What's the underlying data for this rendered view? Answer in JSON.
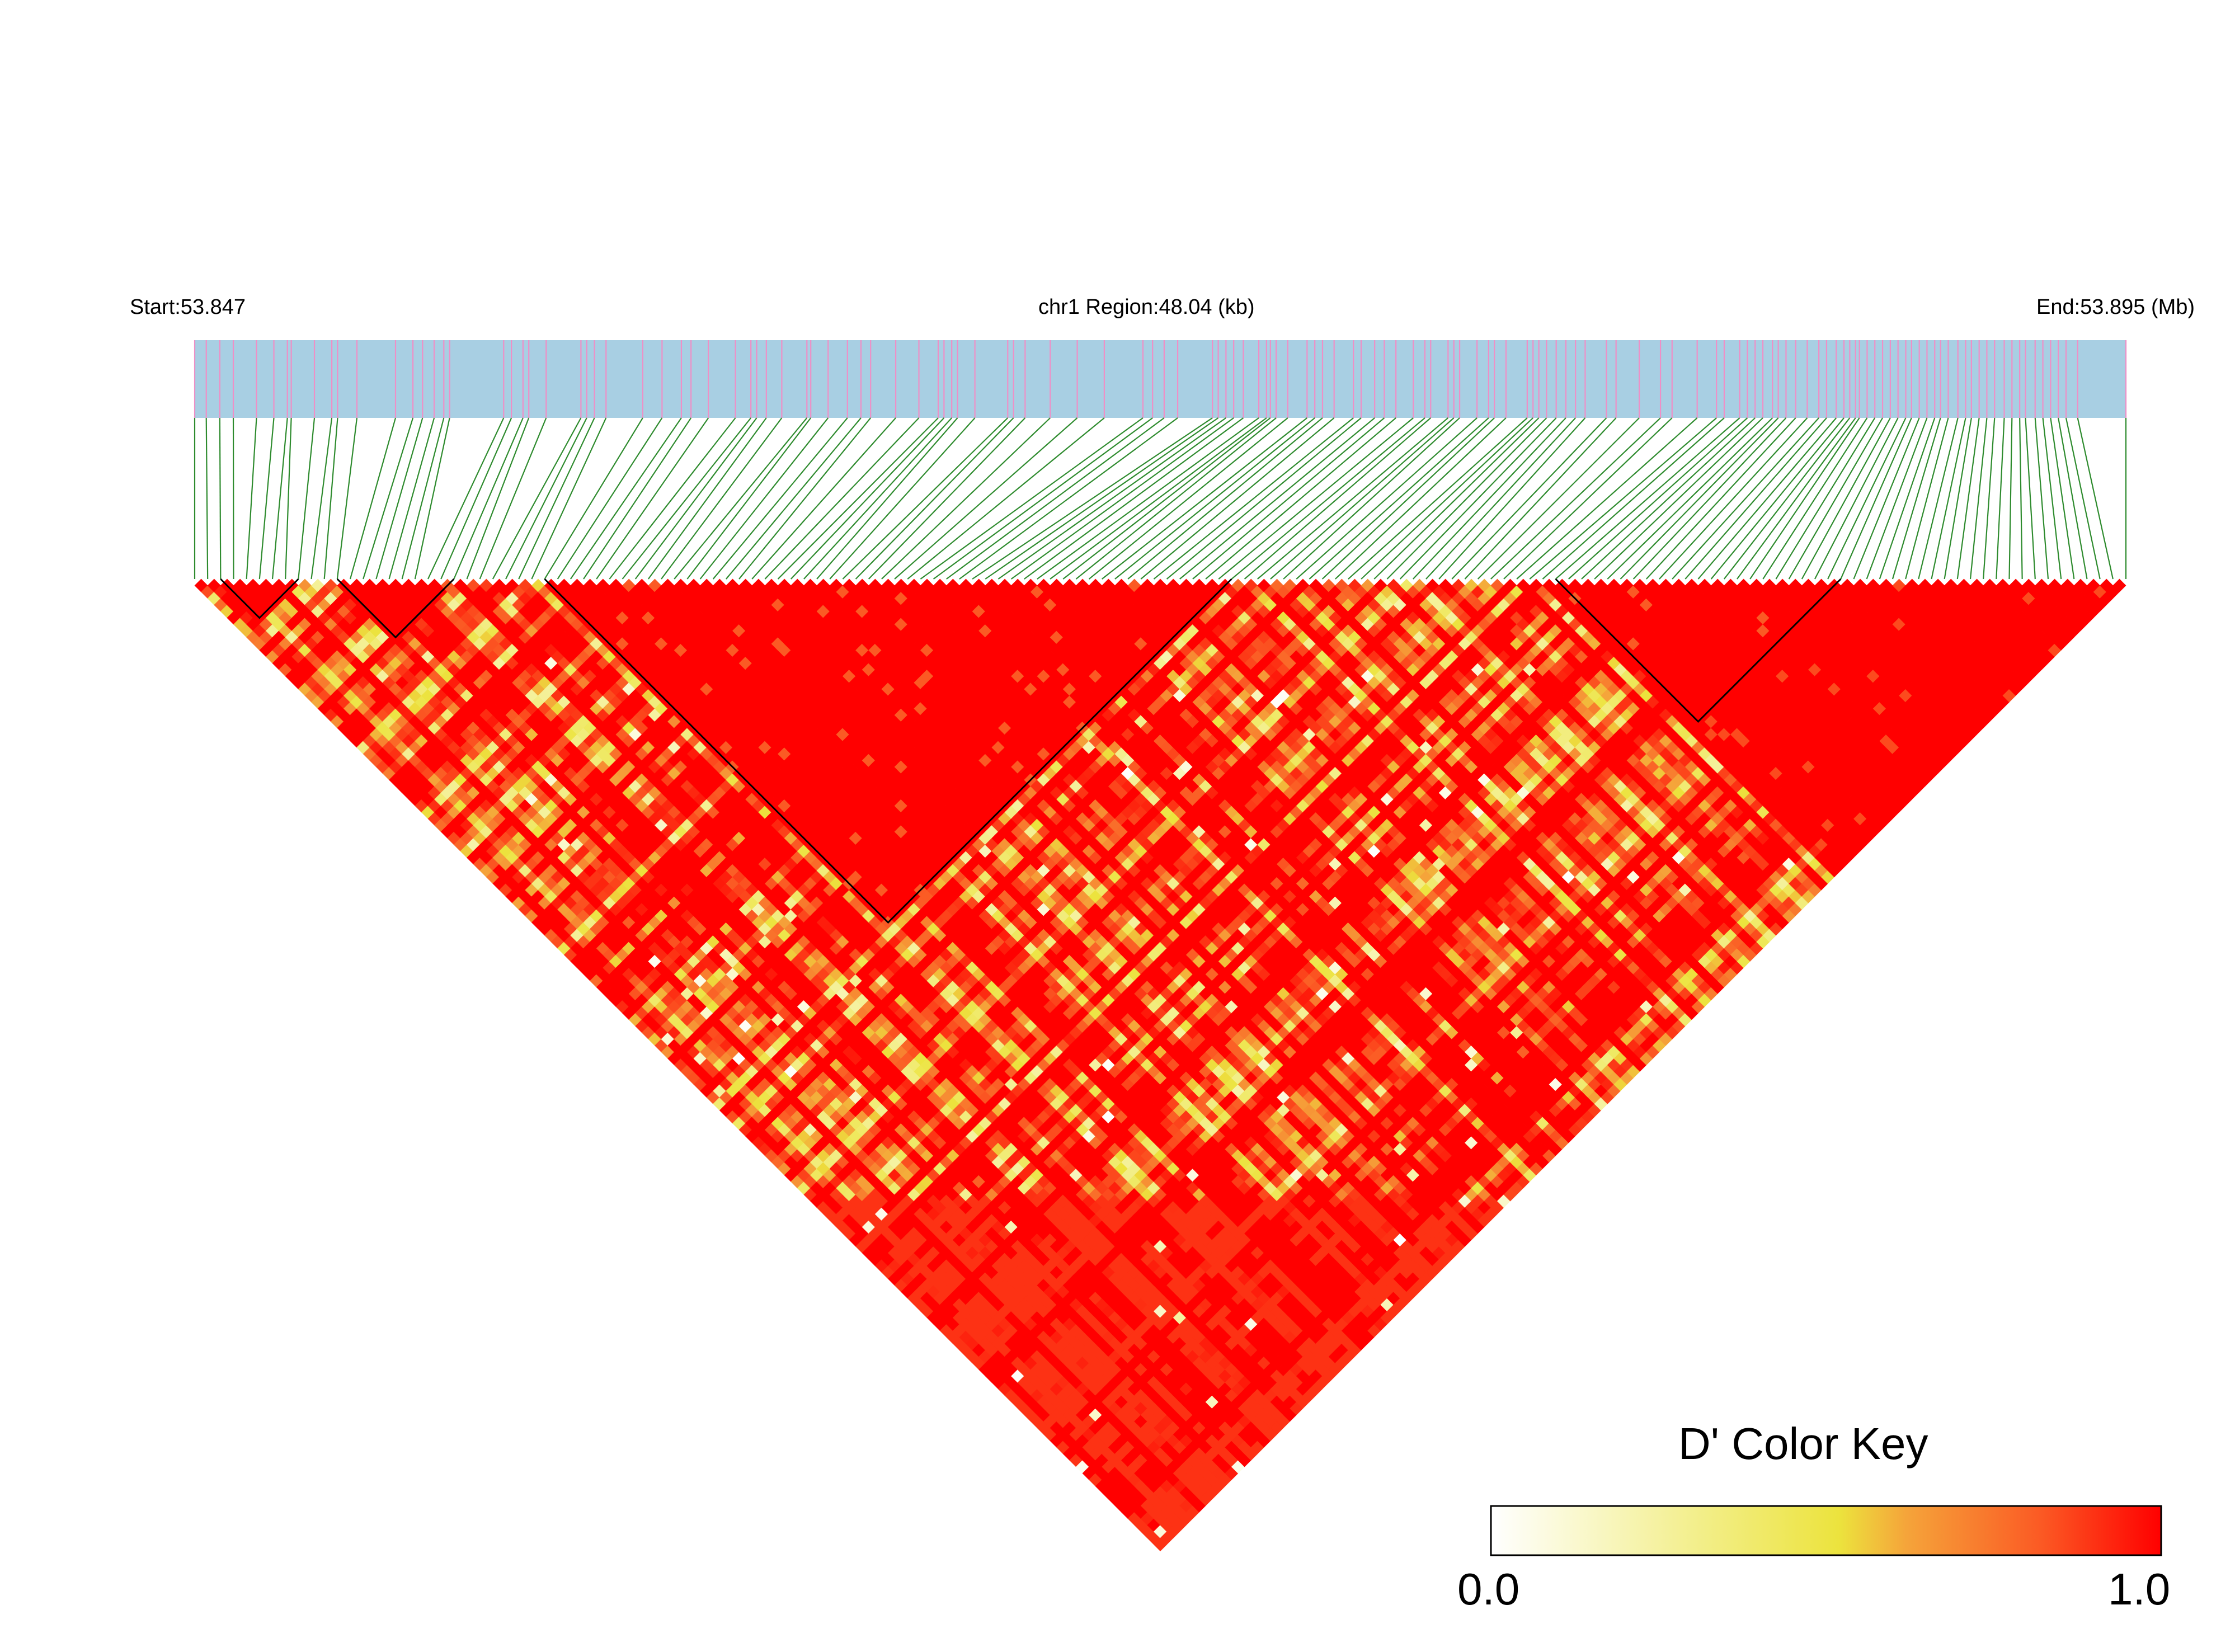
{
  "chart_data": {
    "type": "heatmap",
    "title": "",
    "start_label": "Start:53.847",
    "region_label": "chr1 Region:48.04 (kb)",
    "end_label": "End:53.895 (Mb)",
    "region": {
      "chromosome": "chr1",
      "start_mb": 53.847,
      "end_mb": 53.895,
      "length_kb": 48.04
    },
    "snp_count": 150,
    "snp_positions_frac": [
      0.0,
      0.006,
      0.013,
      0.02,
      0.032,
      0.041,
      0.048,
      0.05,
      0.062,
      0.071,
      0.074,
      0.084,
      0.104,
      0.113,
      0.118,
      0.124,
      0.129,
      0.132,
      0.16,
      0.164,
      0.17,
      0.173,
      0.182,
      0.2,
      0.203,
      0.207,
      0.213,
      0.232,
      0.242,
      0.252,
      0.257,
      0.266,
      0.28,
      0.288,
      0.291,
      0.296,
      0.304,
      0.317,
      0.319,
      0.328,
      0.338,
      0.345,
      0.35,
      0.363,
      0.375,
      0.385,
      0.388,
      0.392,
      0.395,
      0.404,
      0.421,
      0.424,
      0.43,
      0.443,
      0.457,
      0.471,
      0.491,
      0.496,
      0.502,
      0.509,
      0.527,
      0.53,
      0.534,
      0.538,
      0.543,
      0.551,
      0.555,
      0.557,
      0.56,
      0.566,
      0.576,
      0.58,
      0.584,
      0.59,
      0.6,
      0.604,
      0.611,
      0.616,
      0.622,
      0.631,
      0.637,
      0.64,
      0.649,
      0.652,
      0.655,
      0.664,
      0.67,
      0.673,
      0.679,
      0.69,
      0.693,
      0.696,
      0.7,
      0.705,
      0.71,
      0.715,
      0.72,
      0.731,
      0.736,
      0.748,
      0.759,
      0.765,
      0.778,
      0.788,
      0.792,
      0.8,
      0.804,
      0.808,
      0.812,
      0.817,
      0.82,
      0.824,
      0.829,
      0.835,
      0.841,
      0.845,
      0.85,
      0.854,
      0.857,
      0.86,
      0.862,
      0.866,
      0.87,
      0.874,
      0.878,
      0.882,
      0.886,
      0.889,
      0.893,
      0.897,
      0.901,
      0.904,
      0.908,
      0.913,
      0.917,
      0.92,
      0.924,
      0.928,
      0.932,
      0.937,
      0.941,
      0.945,
      0.948,
      0.953,
      0.957,
      0.961,
      0.965,
      0.969,
      0.975,
      1.0
    ],
    "haplotype_blocks": [
      {
        "first_snp": 2,
        "last_snp": 8
      },
      {
        "first_snp": 11,
        "last_snp": 20
      },
      {
        "first_snp": 27,
        "last_snp": 80
      },
      {
        "first_snp": 105,
        "last_snp": 127
      }
    ],
    "ld_metric": "D'",
    "color_scale": {
      "title": "D' Color Key",
      "min_label": "0.0",
      "max_label": "1.0",
      "min": 0.0,
      "max": 1.0,
      "stops": [
        "#ffffff",
        "#f3ef8e",
        "#ece33d",
        "#f5a43a",
        "#fb5a24",
        "#ff0000"
      ]
    },
    "colors": {
      "track": "#a8cfe3",
      "snp_tick": "#ef8fc6",
      "connector": "#2e8b2e",
      "block_outline": "#000000",
      "high_ld": "#ff0000"
    }
  }
}
